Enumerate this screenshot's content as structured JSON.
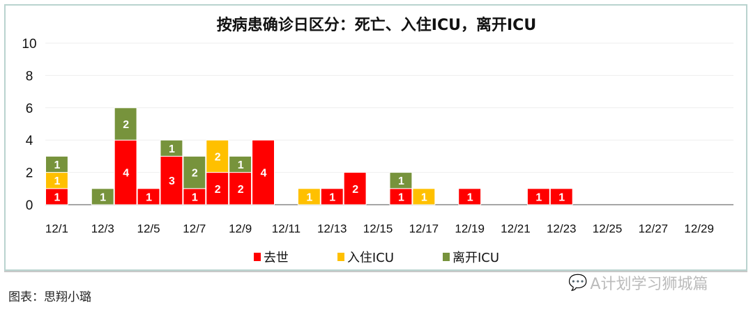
{
  "chart_data": {
    "type": "bar",
    "stacked": true,
    "title": "按病患确诊日区分：死亡、入住ICU，离开ICU",
    "categories": [
      "12/1",
      "12/2",
      "12/3",
      "12/4",
      "12/5",
      "12/6",
      "12/7",
      "12/8",
      "12/9",
      "12/10",
      "12/11",
      "12/12",
      "12/13",
      "12/14",
      "12/15",
      "12/16",
      "12/17",
      "12/18",
      "12/19",
      "12/20",
      "12/21",
      "12/22",
      "12/23",
      "12/24",
      "12/25",
      "12/26",
      "12/27",
      "12/28",
      "12/29",
      "12/30"
    ],
    "tick_labels": [
      "12/1",
      "12/3",
      "12/5",
      "12/7",
      "12/9",
      "12/11",
      "12/13",
      "12/15",
      "12/17",
      "12/19",
      "12/21",
      "12/23",
      "12/25",
      "12/27",
      "12/29"
    ],
    "y_ticks": [
      "0",
      "2",
      "4",
      "6",
      "8",
      "10"
    ],
    "ylim": [
      0,
      10
    ],
    "grid": true,
    "legend_position": "bottom",
    "series": [
      {
        "name": "去世",
        "color": "#ff0000",
        "values": [
          1,
          0,
          0,
          4,
          1,
          3,
          1,
          2,
          2,
          4,
          0,
          0,
          1,
          2,
          0,
          1,
          0,
          0,
          1,
          0,
          0,
          1,
          1,
          0,
          0,
          0,
          0,
          0,
          0,
          0
        ]
      },
      {
        "name": "入住ICU",
        "color": "#ffc000",
        "values": [
          1,
          0,
          0,
          0,
          0,
          0,
          0,
          2,
          0,
          0,
          0,
          1,
          0,
          0,
          0,
          0,
          1,
          0,
          0,
          0,
          0,
          0,
          0,
          0,
          0,
          0,
          0,
          0,
          0,
          0
        ]
      },
      {
        "name": "离开ICU",
        "color": "#77933c",
        "values": [
          1,
          0,
          1,
          2,
          0,
          1,
          2,
          0,
          1,
          0,
          0,
          0,
          0,
          0,
          0,
          1,
          0,
          0,
          0,
          0,
          0,
          0,
          0,
          0,
          0,
          0,
          0,
          0,
          0,
          0
        ]
      }
    ]
  },
  "caption": "图表：思翔小璐",
  "watermark": "A计划学习狮城篇"
}
